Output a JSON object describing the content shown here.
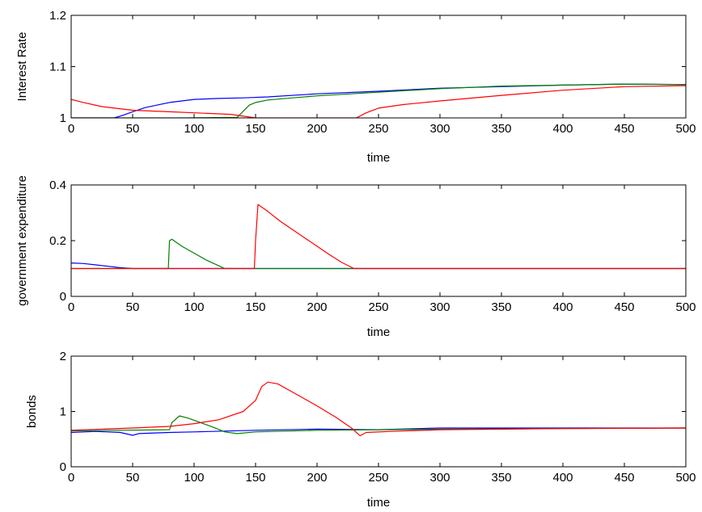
{
  "chart_data": [
    {
      "type": "line",
      "xlabel": "time",
      "ylabel": "Interest Rate",
      "xlim": [
        0,
        500
      ],
      "ylim": [
        1,
        1.2
      ],
      "xticks": [
        "0",
        "50",
        "100",
        "150",
        "200",
        "250",
        "300",
        "350",
        "400",
        "450",
        "500"
      ],
      "yticks": [
        "1",
        "1.1",
        "1.2"
      ],
      "grid": false,
      "series": [
        {
          "color": "#0000ff",
          "points": [
            [
              0,
              1.0
            ],
            [
              35,
              1.0
            ],
            [
              42,
              1.005
            ],
            [
              50,
              1.012
            ],
            [
              60,
              1.02
            ],
            [
              70,
              1.025
            ],
            [
              80,
              1.03
            ],
            [
              90,
              1.033
            ],
            [
              100,
              1.036
            ],
            [
              110,
              1.037
            ],
            [
              120,
              1.038
            ],
            [
              140,
              1.039
            ],
            [
              160,
              1.041
            ],
            [
              200,
              1.047
            ],
            [
              250,
              1.052
            ],
            [
              300,
              1.058
            ],
            [
              350,
              1.061
            ],
            [
              400,
              1.064
            ],
            [
              450,
              1.066
            ],
            [
              500,
              1.065
            ]
          ]
        },
        {
          "color": "#008000",
          "points": [
            [
              0,
              1.0
            ],
            [
              80,
              1.0
            ],
            [
              90,
              1.0
            ],
            [
              135,
              1.001
            ],
            [
              140,
              1.013
            ],
            [
              145,
              1.025
            ],
            [
              150,
              1.03
            ],
            [
              160,
              1.035
            ],
            [
              180,
              1.039
            ],
            [
              200,
              1.043
            ],
            [
              250,
              1.05
            ],
            [
              300,
              1.057
            ],
            [
              350,
              1.062
            ],
            [
              400,
              1.064
            ],
            [
              450,
              1.066
            ],
            [
              500,
              1.065
            ]
          ]
        },
        {
          "color": "#ff0000",
          "points": [
            [
              0,
              1.036
            ],
            [
              10,
              1.03
            ],
            [
              25,
              1.022
            ],
            [
              50,
              1.015
            ],
            [
              80,
              1.012
            ],
            [
              100,
              1.01
            ],
            [
              130,
              1.007
            ],
            [
              150,
              1.0
            ],
            [
              225,
              1.0
            ],
            [
              232,
              1.0
            ],
            [
              240,
              1.01
            ],
            [
              250,
              1.019
            ],
            [
              270,
              1.026
            ],
            [
              300,
              1.033
            ],
            [
              350,
              1.044
            ],
            [
              400,
              1.054
            ],
            [
              450,
              1.061
            ],
            [
              500,
              1.063
            ]
          ]
        }
      ]
    },
    {
      "type": "line",
      "xlabel": "time",
      "ylabel": "government expenditure",
      "xlim": [
        0,
        500
      ],
      "ylim": [
        0,
        0.4
      ],
      "xticks": [
        "0",
        "50",
        "100",
        "150",
        "200",
        "250",
        "300",
        "350",
        "400",
        "450",
        "500"
      ],
      "yticks": [
        "0",
        "0.2",
        "0.4"
      ],
      "grid": false,
      "series": [
        {
          "color": "#0000ff",
          "points": [
            [
              0,
              0.12
            ],
            [
              10,
              0.118
            ],
            [
              20,
              0.113
            ],
            [
              30,
              0.108
            ],
            [
              40,
              0.103
            ],
            [
              50,
              0.1
            ],
            [
              500,
              0.1
            ]
          ]
        },
        {
          "color": "#008000",
          "points": [
            [
              0,
              0.1
            ],
            [
              79,
              0.1
            ],
            [
              80,
              0.2
            ],
            [
              82,
              0.205
            ],
            [
              90,
              0.18
            ],
            [
              100,
              0.155
            ],
            [
              110,
              0.13
            ],
            [
              120,
              0.11
            ],
            [
              125,
              0.1
            ],
            [
              500,
              0.1
            ]
          ]
        },
        {
          "color": "#ff0000",
          "points": [
            [
              0,
              0.1
            ],
            [
              149,
              0.1
            ],
            [
              150,
              0.2
            ],
            [
              152,
              0.33
            ],
            [
              160,
              0.305
            ],
            [
              170,
              0.27
            ],
            [
              180,
              0.24
            ],
            [
              190,
              0.21
            ],
            [
              200,
              0.18
            ],
            [
              210,
              0.15
            ],
            [
              220,
              0.122
            ],
            [
              230,
              0.1
            ],
            [
              500,
              0.1
            ]
          ]
        }
      ]
    },
    {
      "type": "line",
      "xlabel": "time",
      "ylabel": "bonds",
      "xlim": [
        0,
        500
      ],
      "ylim": [
        0,
        2
      ],
      "xticks": [
        "0",
        "50",
        "100",
        "150",
        "200",
        "250",
        "300",
        "350",
        "400",
        "450",
        "500"
      ],
      "yticks": [
        "0",
        "1",
        "2"
      ],
      "grid": false,
      "series": [
        {
          "color": "#0000ff",
          "points": [
            [
              0,
              0.62
            ],
            [
              20,
              0.64
            ],
            [
              40,
              0.62
            ],
            [
              50,
              0.57
            ],
            [
              55,
              0.6
            ],
            [
              80,
              0.62
            ],
            [
              100,
              0.63
            ],
            [
              150,
              0.66
            ],
            [
              200,
              0.68
            ],
            [
              250,
              0.67
            ],
            [
              300,
              0.7
            ],
            [
              350,
              0.7
            ],
            [
              400,
              0.7
            ],
            [
              450,
              0.7
            ],
            [
              500,
              0.7
            ]
          ]
        },
        {
          "color": "#008000",
          "points": [
            [
              0,
              0.65
            ],
            [
              80,
              0.67
            ],
            [
              82,
              0.8
            ],
            [
              88,
              0.92
            ],
            [
              95,
              0.88
            ],
            [
              105,
              0.8
            ],
            [
              115,
              0.72
            ],
            [
              125,
              0.63
            ],
            [
              135,
              0.6
            ],
            [
              150,
              0.63
            ],
            [
              200,
              0.66
            ],
            [
              250,
              0.67
            ],
            [
              300,
              0.68
            ],
            [
              400,
              0.69
            ],
            [
              500,
              0.7
            ]
          ]
        },
        {
          "color": "#ff0000",
          "points": [
            [
              0,
              0.66
            ],
            [
              50,
              0.7
            ],
            [
              80,
              0.73
            ],
            [
              100,
              0.78
            ],
            [
              120,
              0.85
            ],
            [
              140,
              1.0
            ],
            [
              150,
              1.2
            ],
            [
              155,
              1.45
            ],
            [
              160,
              1.53
            ],
            [
              168,
              1.5
            ],
            [
              180,
              1.35
            ],
            [
              200,
              1.1
            ],
            [
              215,
              0.9
            ],
            [
              228,
              0.7
            ],
            [
              235,
              0.56
            ],
            [
              240,
              0.62
            ],
            [
              260,
              0.64
            ],
            [
              300,
              0.67
            ],
            [
              400,
              0.69
            ],
            [
              500,
              0.7
            ]
          ]
        }
      ]
    }
  ]
}
